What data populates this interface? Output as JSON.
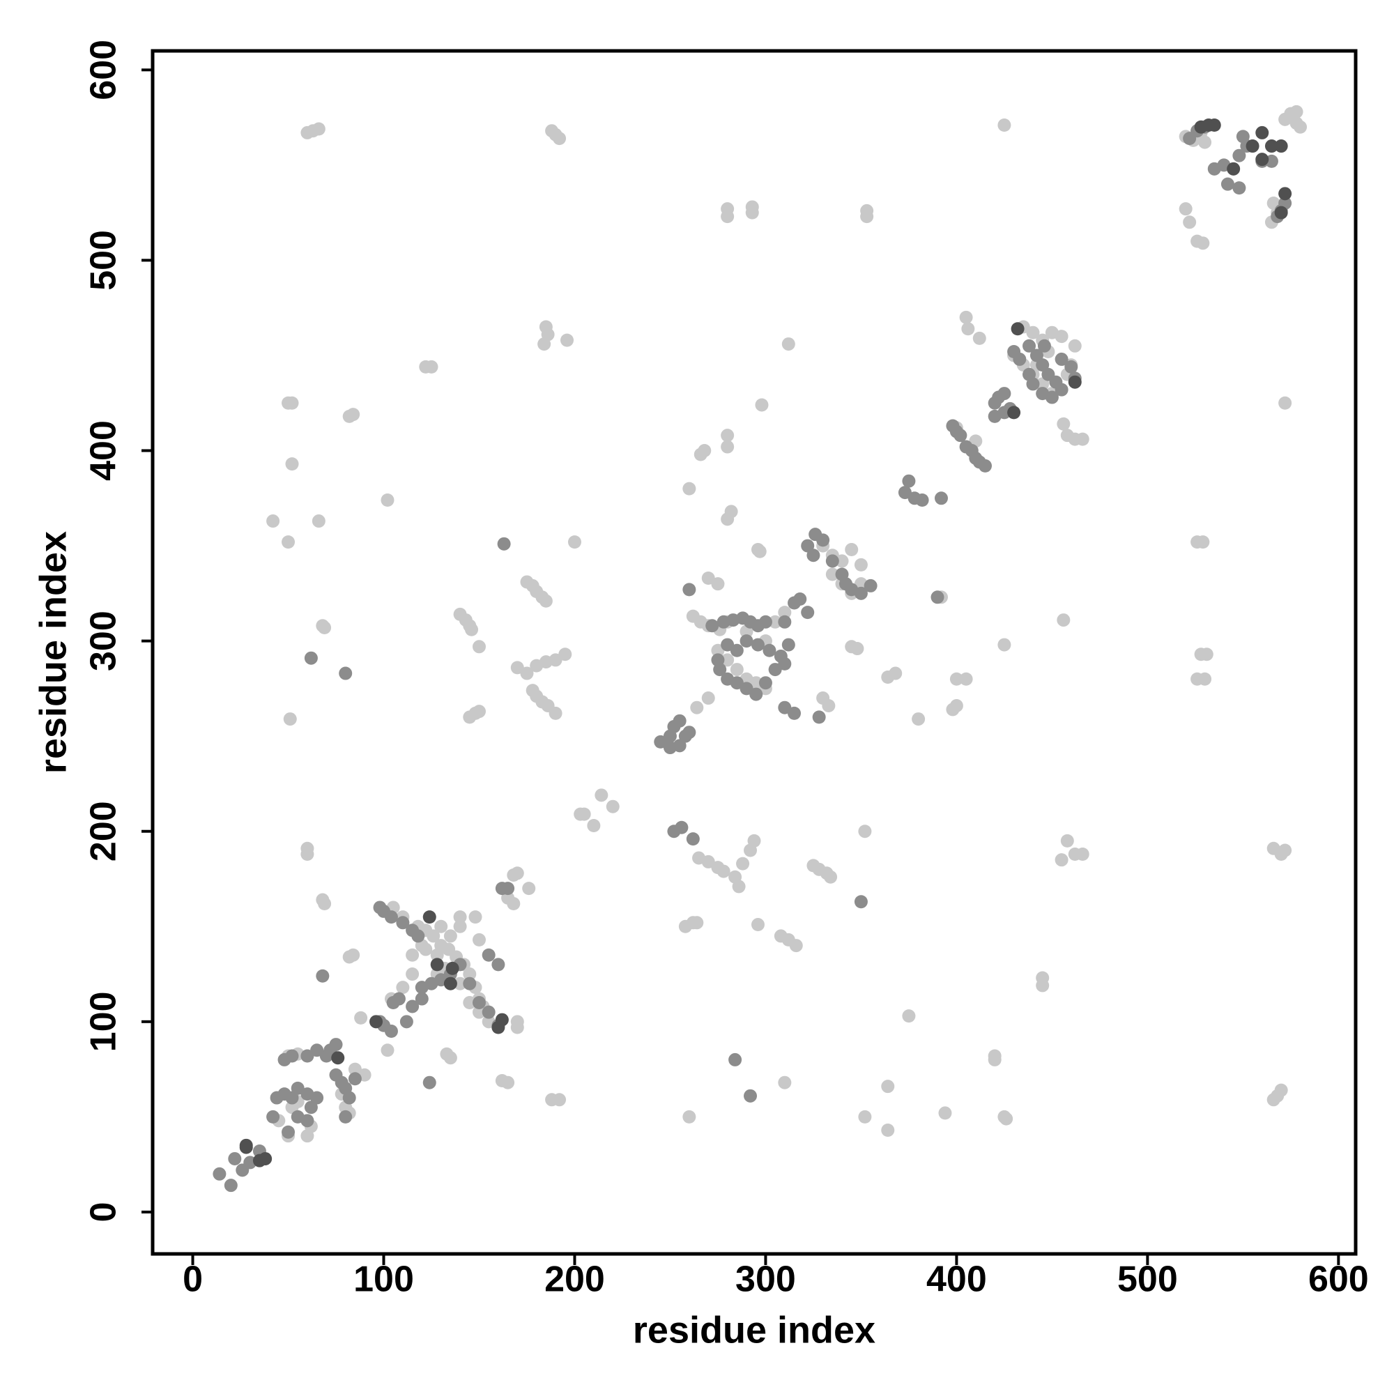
{
  "chart_data": {
    "type": "scatter",
    "xlabel": "residue index",
    "ylabel": "residue index",
    "xlim": [
      -21,
      609
    ],
    "ylim": [
      -22,
      610
    ],
    "xticks": [
      0,
      100,
      200,
      300,
      400,
      500,
      600
    ],
    "yticks": [
      0,
      100,
      200,
      300,
      400,
      500,
      600
    ],
    "series": [
      {
        "color": "#c8c8c8",
        "x": [
          60,
          63,
          66,
          188,
          190,
          192,
          425,
          280,
          280,
          293,
          293,
          353,
          353,
          185,
          186,
          184,
          196,
          312,
          122,
          125,
          50,
          52,
          82,
          84,
          298,
          52,
          102,
          42,
          66,
          50,
          200,
          68,
          69,
          51,
          60,
          60,
          68,
          69,
          82,
          84,
          88,
          102,
          280,
          280,
          266,
          268,
          260,
          282,
          280,
          296,
          297,
          140,
          143,
          145,
          146,
          150,
          175,
          178,
          180,
          183,
          185,
          170,
          175,
          180,
          185,
          190,
          195,
          178,
          180,
          183,
          186,
          190,
          145,
          148,
          150,
          203,
          205,
          210,
          214,
          220,
          270,
          275,
          262,
          266,
          270,
          276,
          264,
          270,
          265,
          270,
          275,
          278,
          284,
          286,
          288,
          292,
          294,
          258,
          262,
          264,
          296,
          308,
          312,
          316,
          325,
          328,
          332,
          334,
          352,
          330,
          333,
          345,
          348,
          364,
          368,
          380,
          400,
          405,
          398,
          400,
          425,
          456,
          392,
          405,
          406,
          412,
          400,
          410,
          455,
          458,
          462,
          466,
          445,
          445,
          375,
          420,
          420,
          425,
          426,
          394,
          352,
          364,
          364,
          310,
          260,
          188,
          192,
          165,
          162,
          135,
          133,
          104,
          520,
          522,
          526,
          529,
          526,
          529,
          528,
          531,
          526,
          530,
          566,
          570,
          572,
          568,
          570,
          566,
          572,
          575,
          578,
          580,
          578,
          572,
          458,
          462,
          466,
          456,
          170,
          168,
          176,
          165,
          168,
          170,
          170,
          118,
          122,
          126,
          130,
          134,
          138,
          142,
          145,
          148,
          150,
          152,
          140,
          135,
          120,
          115,
          128,
          132,
          140,
          145,
          150,
          155,
          160,
          110,
          115,
          128,
          122,
          105,
          110,
          148,
          140,
          130,
          150,
          435,
          440,
          445,
          450,
          455,
          448,
          440,
          445,
          450,
          455,
          460,
          462,
          435,
          430,
          442,
          458,
          275,
          280,
          285,
          290,
          295,
          300,
          300,
          305,
          310,
          280,
          290,
          330,
          335,
          340,
          345,
          350,
          340,
          345,
          350,
          335,
          520,
          524,
          528,
          530,
          565,
          568,
          570,
          566,
          45,
          50,
          52,
          55,
          60,
          62,
          50,
          55,
          80,
          82,
          85,
          90,
          78
        ],
        "values": [
          567,
          568,
          569,
          568,
          566,
          564,
          571,
          527,
          523,
          528,
          525,
          526,
          523,
          465,
          461,
          456,
          458,
          456,
          444,
          444,
          425,
          425,
          418,
          419,
          424,
          393,
          374,
          363,
          363,
          352,
          352,
          308,
          307,
          259,
          191,
          188,
          164,
          162,
          134,
          135,
          102,
          85,
          408,
          402,
          398,
          400,
          380,
          368,
          364,
          348,
          347,
          314,
          311,
          308,
          306,
          297,
          331,
          329,
          326,
          323,
          321,
          286,
          283,
          287,
          289,
          290,
          293,
          274,
          271,
          268,
          266,
          262,
          260,
          262,
          263,
          209,
          209,
          203,
          219,
          213,
          333,
          330,
          313,
          310,
          308,
          306,
          265,
          270,
          186,
          184,
          181,
          179,
          176,
          171,
          183,
          190,
          195,
          150,
          152,
          152,
          151,
          145,
          143,
          140,
          182,
          180,
          178,
          176,
          200,
          270,
          266,
          297,
          296,
          281,
          283,
          259,
          280,
          280,
          264,
          266,
          298,
          311,
          323,
          470,
          464,
          459,
          412,
          405,
          185,
          195,
          188,
          188,
          123,
          119,
          103,
          82,
          80,
          50,
          49,
          52,
          50,
          66,
          43,
          68,
          50,
          59,
          59,
          68,
          69,
          81,
          83,
          112,
          527,
          520,
          510,
          509,
          352,
          352,
          293,
          293,
          280,
          280,
          191,
          188,
          190,
          61,
          64,
          59,
          425,
          577,
          578,
          570,
          572,
          574,
          408,
          406,
          406,
          414,
          178,
          177,
          170,
          165,
          162,
          100,
          97,
          150,
          148,
          145,
          140,
          138,
          134,
          130,
          125,
          118,
          112,
          108,
          150,
          145,
          140,
          135,
          125,
          128,
          120,
          110,
          105,
          100,
          98,
          118,
          125,
          135,
          138,
          160,
          155,
          155,
          155,
          150,
          143,
          465,
          462,
          458,
          462,
          460,
          452,
          440,
          435,
          430,
          432,
          445,
          455,
          445,
          450,
          445,
          440,
          295,
          290,
          285,
          280,
          278,
          275,
          300,
          310,
          315,
          310,
          305,
          350,
          345,
          342,
          348,
          340,
          330,
          325,
          330,
          335,
          565,
          563,
          567,
          562,
          520,
          525,
          528,
          530,
          48,
          40,
          55,
          58,
          40,
          45,
          82,
          83,
          55,
          52,
          75,
          72,
          62
        ]
      },
      {
        "color": "#8c8c8c",
        "x": [
          163,
          62,
          80,
          68,
          124,
          350,
          284,
          292,
          20,
          14,
          22,
          26,
          30,
          35,
          42,
          44,
          48,
          52,
          50,
          55,
          60,
          62,
          65,
          60,
          55,
          48,
          52,
          60,
          65,
          70,
          72,
          75,
          78,
          80,
          82,
          80,
          85,
          75,
          98,
          100,
          104,
          98,
          100,
          104,
          110,
          115,
          118,
          120,
          125,
          130,
          135,
          140,
          145,
          150,
          155,
          160,
          165,
          162,
          105,
          108,
          112,
          115,
          120,
          160,
          155,
          245,
          250,
          252,
          255,
          258,
          260,
          250,
          255,
          252,
          256,
          262,
          260,
          272,
          278,
          283,
          288,
          292,
          296,
          300,
          275,
          276,
          280,
          285,
          290,
          295,
          300,
          305,
          310,
          308,
          302,
          296,
          290,
          285,
          280,
          310,
          315,
          312,
          310,
          315,
          318,
          322,
          322,
          326,
          330,
          325,
          335,
          340,
          342,
          345,
          350,
          355,
          328,
          373,
          375,
          378,
          382,
          392,
          390,
          398,
          400,
          402,
          405,
          408,
          410,
          412,
          415,
          420,
          422,
          425,
          428,
          420,
          425,
          430,
          433,
          438,
          442,
          445,
          448,
          452,
          455,
          450,
          445,
          440,
          438,
          446,
          455,
          460,
          462,
          522,
          526,
          530,
          535,
          540,
          542,
          548,
          550,
          552,
          548,
          560,
          565,
          568,
          570,
          572
        ],
        "values": [
          351,
          291,
          283,
          124,
          68,
          163,
          80,
          61,
          14,
          20,
          28,
          22,
          26,
          32,
          50,
          60,
          62,
          60,
          42,
          50,
          48,
          55,
          60,
          62,
          65,
          80,
          82,
          82,
          85,
          82,
          85,
          88,
          68,
          65,
          60,
          50,
          70,
          72,
          100,
          98,
          95,
          160,
          158,
          155,
          152,
          148,
          145,
          118,
          120,
          122,
          125,
          130,
          120,
          110,
          105,
          98,
          170,
          170,
          110,
          112,
          100,
          108,
          112,
          130,
          135,
          247,
          250,
          255,
          258,
          250,
          252,
          244,
          245,
          200,
          202,
          196,
          327,
          308,
          310,
          311,
          312,
          310,
          308,
          310,
          290,
          285,
          280,
          278,
          275,
          272,
          278,
          285,
          288,
          292,
          295,
          298,
          300,
          295,
          298,
          265,
          262,
          298,
          310,
          320,
          322,
          315,
          350,
          356,
          353,
          345,
          342,
          335,
          330,
          327,
          325,
          329,
          260,
          378,
          384,
          375,
          374,
          375,
          323,
          413,
          410,
          408,
          402,
          400,
          396,
          394,
          392,
          425,
          428,
          430,
          422,
          418,
          420,
          452,
          448,
          455,
          450,
          445,
          440,
          436,
          432,
          428,
          430,
          435,
          440,
          455,
          448,
          444,
          438,
          564,
          568,
          570,
          548,
          550,
          540,
          538,
          565,
          560,
          555,
          552,
          552,
          523,
          526,
          530
        ]
      },
      {
        "color": "#505050",
        "x": [
          28,
          35,
          38,
          28,
          76,
          124,
          136,
          135,
          128,
          160,
          162,
          96,
          432,
          430,
          462,
          528,
          532,
          535,
          555,
          560,
          565,
          570,
          572,
          570,
          560,
          545
        ],
        "values": [
          34,
          27,
          28,
          35,
          81,
          155,
          128,
          120,
          130,
          97,
          101,
          100,
          464,
          420,
          436,
          570,
          571,
          571,
          560,
          567,
          560,
          560,
          535,
          525,
          553,
          548
        ]
      }
    ]
  }
}
